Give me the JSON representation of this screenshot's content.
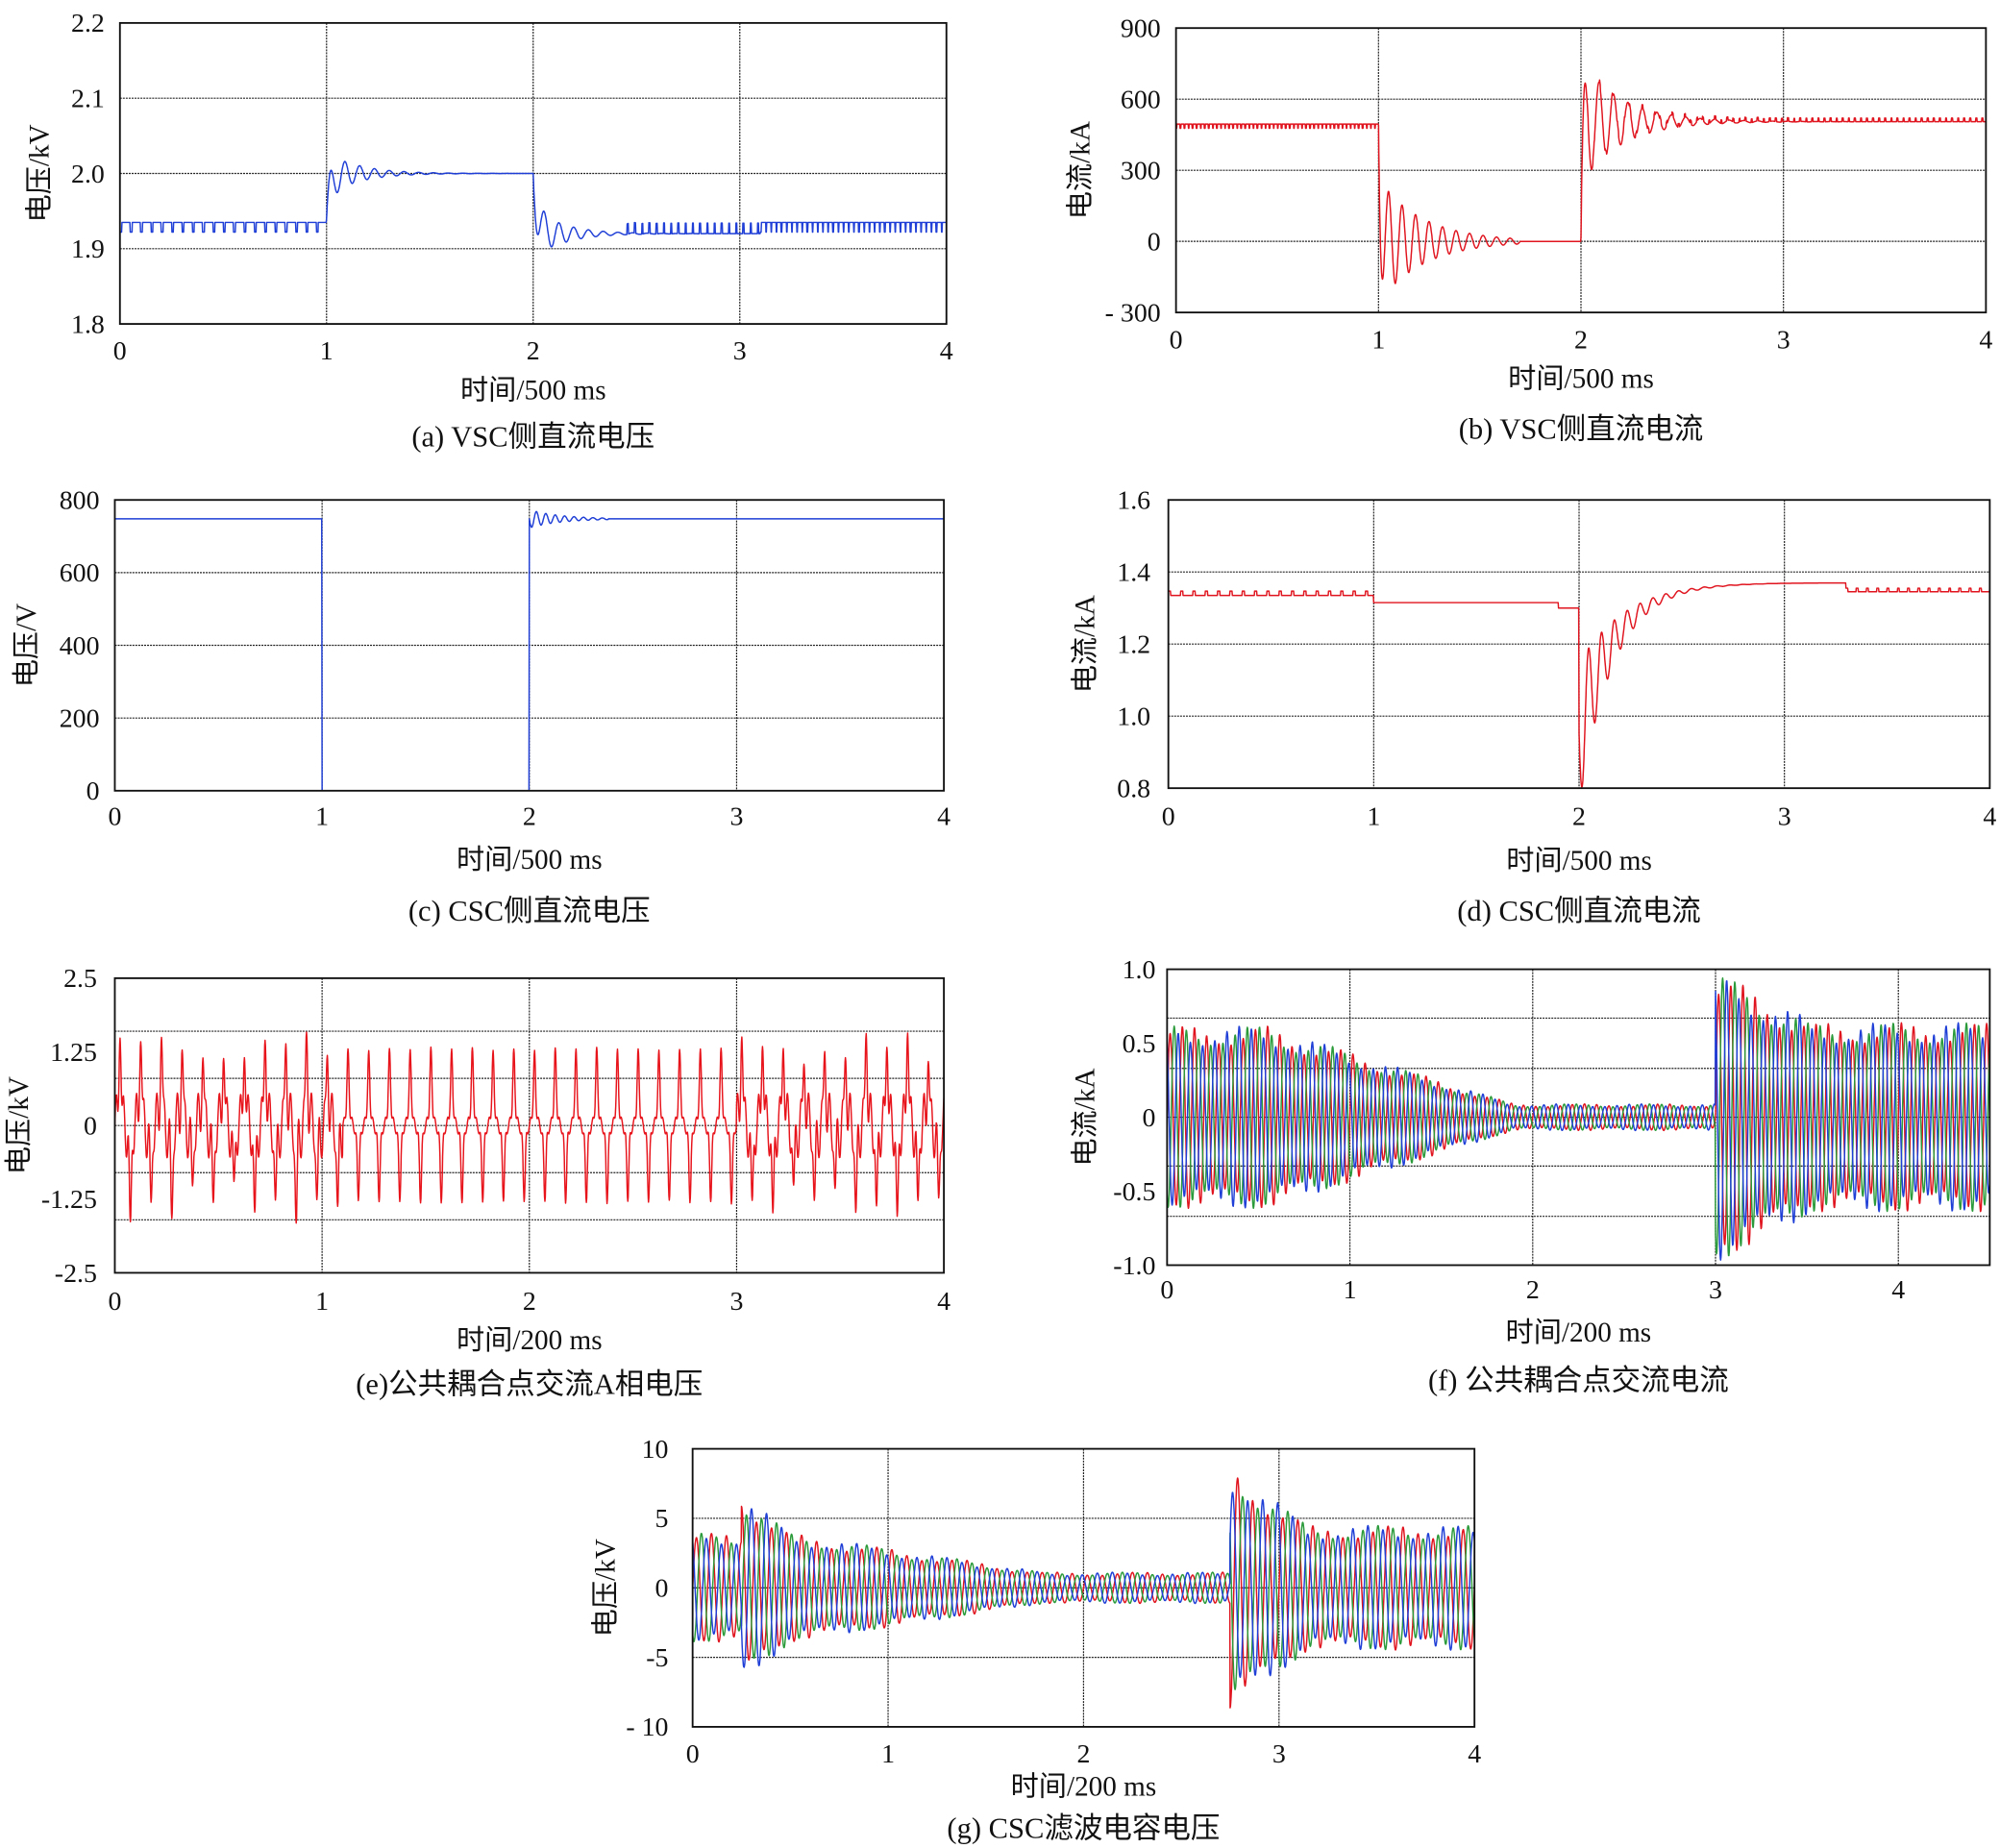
{
  "chart_data": [
    {
      "id": "a",
      "type": "line",
      "caption": "(a) VSC侧直流电压",
      "xlabel": "时间/500 ms",
      "ylabel": "电压/kV",
      "xlim": [
        0,
        4
      ],
      "ylim": [
        1.8,
        2.2
      ],
      "x_ticks": [
        0,
        1,
        2,
        3,
        4
      ],
      "x_tick_labels": [
        "0",
        "1",
        "2",
        "3",
        "4"
      ],
      "y_ticks": [
        2.2,
        2.1,
        2.0,
        1.9,
        1.8
      ],
      "y_tick_labels": [
        "2.2",
        "2.1",
        "2.0",
        "1.9",
        "1.8"
      ],
      "grid_x": [
        1,
        2,
        3
      ],
      "grid_y": [
        2.1,
        2.0,
        1.9
      ],
      "series": [
        {
          "color": "#1f3fd6",
          "kind": "dc",
          "segments": [
            {
              "from": 0,
              "to": 1,
              "level": 1.935,
              "ripple": {
                "amp": -0.013,
                "period": 0.05
              }
            },
            {
              "from": 1,
              "to": 2,
              "level": 2.0,
              "start": 1.94,
              "rise": 0.02,
              "osc": {
                "amp": 0.03,
                "decay": 0.15,
                "freq": 14
              }
            },
            {
              "from": 2,
              "to": 3.1,
              "level": 1.92,
              "start": 2.0,
              "rise": 0.02,
              "osc": {
                "amp": -0.035,
                "decay": 0.14,
                "freq": 14
              },
              "ripple": {
                "amp": 0.014,
                "period": 0.035,
                "until": 0.45
              }
            },
            {
              "from": 3.1,
              "to": 4,
              "level": 1.935,
              "ripple": {
                "amp": -0.013,
                "period": 0.025
              }
            }
          ]
        }
      ]
    },
    {
      "id": "b",
      "type": "line",
      "caption": "(b) VSC侧直流电流",
      "xlabel": "时间/500 ms",
      "ylabel": "电流/kA",
      "xlim": [
        0,
        4
      ],
      "ylim": [
        -300,
        900
      ],
      "x_ticks": [
        0,
        1,
        2,
        3,
        4
      ],
      "x_tick_labels": [
        "0",
        "1",
        "2",
        "3",
        "4"
      ],
      "y_ticks": [
        900,
        600,
        300,
        0,
        -300
      ],
      "y_tick_labels": [
        "900",
        "600",
        "300",
        "0",
        "- 300"
      ],
      "grid_x": [
        1,
        2,
        3
      ],
      "grid_y": [
        600,
        300,
        0
      ],
      "series": [
        {
          "color": "#e0141e",
          "kind": "dc",
          "segments": [
            {
              "from": 0,
              "to": 1,
              "level": 495,
              "ripple": {
                "amp": -18,
                "period": 0.02
              }
            },
            {
              "from": 1,
              "to": 2,
              "level": 0,
              "start": 490,
              "rise": 0.01,
              "osc": {
                "amp": -260,
                "decay": 0.22,
                "freq": 15
              },
              "osc_until": 0.7
            },
            {
              "from": 2,
              "to": 4,
              "level": 505,
              "start": 0,
              "rise": 0.01,
              "osc": {
                "amp": 260,
                "decay": 0.2,
                "freq": 14
              },
              "ripple": {
                "amp": 15,
                "period": 0.03
              }
            }
          ]
        }
      ]
    },
    {
      "id": "c",
      "type": "line",
      "caption": "(c) CSC侧直流电压",
      "xlabel": "时间/500 ms",
      "ylabel": "电压/V",
      "xlim": [
        0,
        4
      ],
      "ylim": [
        0,
        800
      ],
      "x_ticks": [
        0,
        1,
        2,
        3,
        4
      ],
      "x_tick_labels": [
        "0",
        "1",
        "2",
        "3",
        "4"
      ],
      "y_ticks": [
        800,
        600,
        400,
        200,
        0
      ],
      "y_tick_labels": [
        "800",
        "600",
        "400",
        "200",
        "0"
      ],
      "grid_x": [
        1,
        2,
        3
      ],
      "grid_y": [
        600,
        400,
        200
      ],
      "series": [
        {
          "color": "#1f3fd6",
          "kind": "dc",
          "segments": [
            {
              "from": 0,
              "to": 1,
              "level": 748
            },
            {
              "from": 1,
              "to": 2,
              "level": 0
            },
            {
              "from": 2,
              "to": 4,
              "level": 748,
              "osc": {
                "amp": -25,
                "decay": 0.15,
                "freq": 22
              },
              "osc_until": 0.38
            }
          ]
        }
      ]
    },
    {
      "id": "d",
      "type": "line",
      "caption": "(d) CSC侧直流电流",
      "xlabel": "时间/500 ms",
      "ylabel": "电流/kA",
      "xlim": [
        0,
        4
      ],
      "ylim": [
        0.8,
        1.6
      ],
      "x_ticks": [
        0,
        1,
        2,
        3,
        4
      ],
      "x_tick_labels": [
        "0",
        "1",
        "2",
        "3",
        "4"
      ],
      "y_ticks": [
        1.6,
        1.4,
        1.2,
        1.0,
        0.8
      ],
      "y_tick_labels": [
        "1.6",
        "1.4",
        "1.2",
        "1.0",
        "0.8"
      ],
      "grid_x": [
        1,
        2,
        3
      ],
      "grid_y": [
        1.4,
        1.2,
        1.0
      ],
      "series": [
        {
          "color": "#e0141e",
          "kind": "dc",
          "segments": [
            {
              "from": 0,
              "to": 1,
              "level": 1.335,
              "ripple": {
                "amp": 0.012,
                "period": 0.06
              }
            },
            {
              "from": 1,
              "to": 1.9,
              "level": 1.315
            },
            {
              "from": 1.9,
              "to": 2,
              "level": 1.3
            },
            {
              "from": 2,
              "to": 3.3,
              "level": 1.37,
              "start": 0.95,
              "rise": 0.18,
              "osc": {
                "amp": -0.2,
                "decay": 0.14,
                "freq": 16
              }
            },
            {
              "from": 3.3,
              "to": 4,
              "level": 1.345,
              "ripple": {
                "amp": 0.01,
                "period": 0.05
              }
            }
          ]
        }
      ]
    },
    {
      "id": "e",
      "type": "line",
      "caption": "(e)公共耦合点交流A相电压",
      "xlabel": "时间/200 ms",
      "ylabel": "电压/kV",
      "xlim": [
        0,
        4
      ],
      "ylim": [
        -2.5,
        2.5
      ],
      "x_ticks": [
        0,
        1,
        2,
        3,
        4
      ],
      "x_tick_labels": [
        "0",
        "1",
        "2",
        "3",
        "4"
      ],
      "y_ticks": [
        2.5,
        1.25,
        0,
        -1.25,
        -2.5
      ],
      "y_tick_labels": [
        "2.5",
        "1.25",
        "0",
        "-1.25",
        "-2.5"
      ],
      "grid_x": [
        1,
        2,
        3
      ],
      "grid_y": [
        1.6,
        0.8,
        0,
        -0.8,
        -1.6
      ],
      "series": [
        {
          "color": "#e8141c",
          "kind": "spiky",
          "freq": 10,
          "segments": [
            {
              "from": 0,
              "to": 1.1,
              "peak": 1.3,
              "base": 0.55,
              "irregular": 0.6
            },
            {
              "from": 1.1,
              "to": 3.0,
              "peak": 1.3,
              "base": 0.15,
              "irregular": 0.05
            },
            {
              "from": 3.0,
              "to": 4,
              "peak": 1.3,
              "base": 0.55,
              "irregular": 0.55
            }
          ]
        }
      ]
    },
    {
      "id": "f",
      "type": "line",
      "caption": "(f) 公共耦合点交流电流",
      "xlabel": "时间/200 ms",
      "ylabel": "电流/kA",
      "xlim": [
        0,
        4.5
      ],
      "ylim": [
        -1.0,
        1.0
      ],
      "x_ticks": [
        0,
        1,
        2,
        3,
        4
      ],
      "x_tick_labels": [
        "0",
        "1",
        "2",
        "3",
        "4"
      ],
      "y_ticks": [
        1.0,
        0.5,
        0,
        -0.5,
        -1.0
      ],
      "y_tick_labels": [
        "1.0",
        "0.5",
        "0",
        "-0.5",
        "-1.0"
      ],
      "grid_x": [
        1,
        2,
        3,
        4
      ],
      "grid_y": [
        0.67,
        0.33,
        0,
        -0.33,
        -0.67
      ],
      "series": [
        {
          "phase": "a",
          "color": "#e0141e"
        },
        {
          "phase": "b",
          "color": "#2a9a3a"
        },
        {
          "phase": "c",
          "color": "#1f3fd6"
        }
      ],
      "ac": {
        "freq": 15,
        "segments": [
          {
            "from": 0,
            "to": 0.55,
            "amp": [
              0.55,
              0.55
            ]
          },
          {
            "from": 0.55,
            "to": 1.9,
            "amp": [
              0.55,
              0.08
            ]
          },
          {
            "from": 1.9,
            "to": 3.0,
            "amp": [
              0.08,
              0.08
            ]
          },
          {
            "from": 3.0,
            "to": 3.5,
            "amp": [
              0.88,
              0.6
            ]
          },
          {
            "from": 3.5,
            "to": 4.5,
            "amp": [
              0.57,
              0.57
            ]
          }
        ]
      }
    },
    {
      "id": "g",
      "type": "line",
      "caption": "(g) CSC滤波电容电压",
      "xlabel": "时间/200 ms",
      "ylabel": "电压/kV",
      "xlim": [
        0,
        4
      ],
      "ylim": [
        -10,
        10
      ],
      "x_ticks": [
        0,
        1,
        2,
        3,
        4
      ],
      "x_tick_labels": [
        "0",
        "1",
        "2",
        "3",
        "4"
      ],
      "y_ticks": [
        10,
        5,
        0,
        -5,
        -10
      ],
      "y_tick_labels": [
        "10",
        "5",
        "0",
        "-5",
        "- 10"
      ],
      "grid_x": [
        1,
        2,
        3
      ],
      "grid_y": [
        5,
        0,
        -5
      ],
      "series": [
        {
          "phase": "a",
          "color": "#e0141e"
        },
        {
          "phase": "b",
          "color": "#2a9a3a"
        },
        {
          "phase": "c",
          "color": "#1f3fd6"
        }
      ],
      "ac": {
        "freq": 13,
        "segments": [
          {
            "from": 0,
            "to": 0.25,
            "amp": [
              3.5,
              3.5
            ]
          },
          {
            "from": 0.25,
            "to": 0.5,
            "amp": [
              6.2,
              3.5
            ]
          },
          {
            "from": 0.5,
            "to": 1.8,
            "amp": [
              3.5,
              1.0
            ]
          },
          {
            "from": 1.8,
            "to": 2.75,
            "amp": [
              1.0,
              1.0
            ]
          },
          {
            "from": 2.75,
            "to": 3.15,
            "amp": [
              7.8,
              4.0
            ]
          },
          {
            "from": 3.15,
            "to": 4,
            "amp": [
              4.0,
              4.0
            ]
          }
        ]
      }
    }
  ]
}
